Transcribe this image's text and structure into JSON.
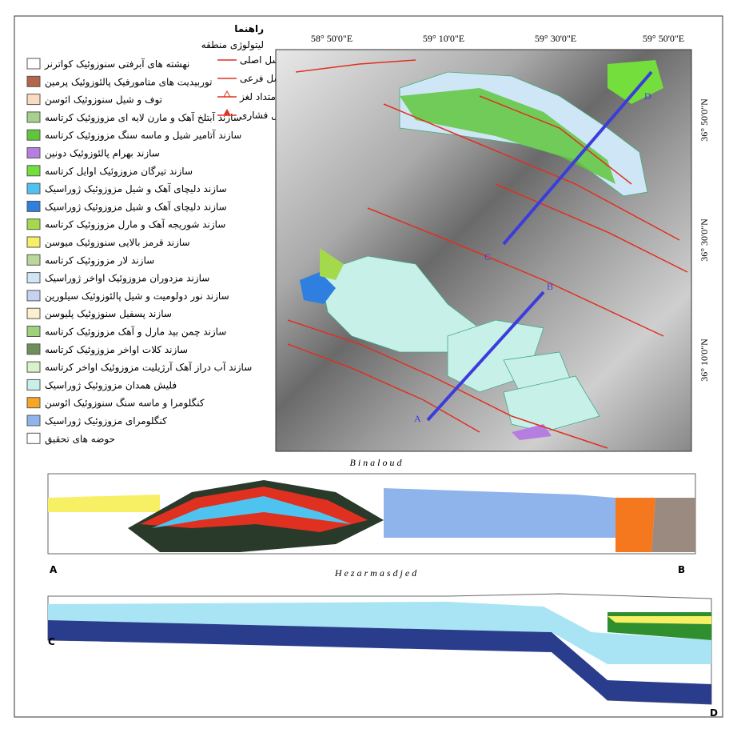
{
  "legend": {
    "title": "راهنما",
    "subtitle": "لیتولوژی منطقه",
    "items": [
      {
        "label": "نهشته های آبرفتی سنوزوئیک کواترنر",
        "color": "#ffffff"
      },
      {
        "label": "توربیدیت های متامورفیک پالئوزوئیک پرمین",
        "color": "#b5654a"
      },
      {
        "label": "توف و شیل سنوزوئیک ائوسن",
        "color": "#f9dcc0"
      },
      {
        "label": "سازند آبتلخ آهک و مارن لایه ای مزوزوئیک کرتاسه",
        "color": "#a8d08d"
      },
      {
        "label": "سازند آتامیر شیل و ماسه سنگ مزوزوئیک کرتاسه",
        "color": "#5fc63c"
      },
      {
        "label": "سازند بهرام پالئوزوئیک دونین",
        "color": "#b57ee0"
      },
      {
        "label": "سازند تیرگان مزوزوئیک اوایل کرتاسه",
        "color": "#73de3c"
      },
      {
        "label": "سازند دلیچای آهک و شیل مزوزوئیک ژوراسیک",
        "color": "#4fc3f0"
      },
      {
        "label": "سازند دلیچای آهک و شیل مزوزوئیک ژوراسیک",
        "color": "#2f7fe0"
      },
      {
        "label": "سازند شوریجه آهک و مارل مزوزوئیک کرتاسه",
        "color": "#a3d94a"
      },
      {
        "label": "سازند قرمز بالایی سنوزوئیک میوسن",
        "color": "#f7f064"
      },
      {
        "label": "سازند لار مزوزوئیک کرتاسه",
        "color": "#b9d89a"
      },
      {
        "label": "سازند مزدوران مزوزوئیک اواخر ژوراسیک",
        "color": "#cfe6f7"
      },
      {
        "label": "سازند نور دولومیت و شیل پالئوزوئیک سیلورین",
        "color": "#c6d3f0"
      },
      {
        "label": "سازند پسفیل سنوزوئیک پلیوسن",
        "color": "#fbf1cc"
      },
      {
        "label": "سازند چمن بید مارل و آهک مزوزوئیک کرتاسه",
        "color": "#9fd07a"
      },
      {
        "label": "سازند کلات اواخر مزوزوئیک کرتاسه",
        "color": "#6f8f5a"
      },
      {
        "label": "سازند آب دراز آهک آرژیلیت مزوزوئیک اواخر کرتاسه",
        "color": "#d9f2c9"
      },
      {
        "label": "فلیش همدان مزوزوئیک ژوراسیک",
        "color": "#c7f0e8"
      },
      {
        "label": "کنگلومرا و ماسه سنگ سنوزوئیک ائوسن",
        "color": "#f5a623"
      },
      {
        "label": "کنگلومرای مزوزوئیک ژوراسیک",
        "color": "#8fb4ec"
      },
      {
        "label": "حوضه های تحقیق",
        "color": "#ffffff"
      }
    ]
  },
  "faults": [
    "گسل اصلی",
    "گسل فرعی",
    "گسل امتداد لغز",
    "گسل فشاری"
  ],
  "map": {
    "lon_labels": [
      "58° 50'0\"E",
      "59° 10'0\"E",
      "59° 30'0\"E",
      "59° 50'0\"E"
    ],
    "lat_labels": [
      "36° 50'0\"N",
      "36° 30'0\"N",
      "36° 10'0\"N"
    ],
    "points": [
      "A",
      "B",
      "C",
      "D"
    ]
  },
  "sections": {
    "top_name": "B i n a l o u d",
    "bottom_name": "H e z a r m a s d j e d",
    "ends": [
      "A",
      "B",
      "C",
      "D"
    ]
  }
}
